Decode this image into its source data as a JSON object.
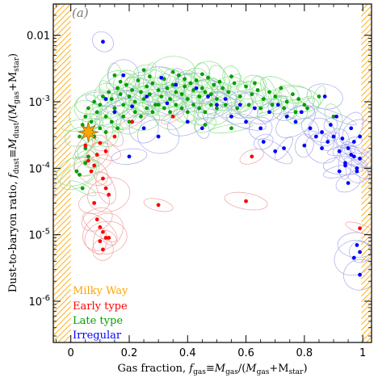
{
  "chart_data": {
    "type": "scatter",
    "panel_label": "(a)",
    "xlabel": "Gas fraction, f_gas≡M_gas/(M_gas+M_star)",
    "ylabel": "Dust-to-baryon ratio, f_dust≡M_dust/(M_gas+M_star)",
    "xlim": [
      -0.06,
      1.03
    ],
    "ylim_log10": [
      -6.62,
      -1.53
    ],
    "y_scale": "log",
    "x_ticks": [
      "0",
      "0.2",
      "0.4",
      "0.6",
      "0.8",
      "1"
    ],
    "y_ticks": [
      "10^-6",
      "10^-5",
      "10^-4",
      "10^-3",
      "0.01"
    ],
    "excluded_regions": [
      [
        -0.06,
        0.0
      ],
      [
        0.995,
        1.03
      ]
    ],
    "legend_position": "bottom-left",
    "legend": [
      {
        "label": "Milky Way",
        "color": "#ffa500"
      },
      {
        "label": "Early type",
        "color": "#ff0000"
      },
      {
        "label": "Late type",
        "color": "#00a000"
      },
      {
        "label": "Irregular",
        "color": "#0000ff"
      }
    ],
    "series": [
      {
        "name": "Milky Way",
        "color": "#ffa500",
        "marker": "star",
        "points": [
          [
            0.06,
            0.00035
          ]
        ]
      },
      {
        "name": "Early type",
        "color": "#ff0000",
        "points": [
          [
            0.05,
            0.00022
          ],
          [
            0.06,
            0.00013
          ],
          [
            0.07,
            9e-05
          ],
          [
            0.08,
            0.00011
          ],
          [
            0.09,
            0.00016
          ],
          [
            0.1,
            0.00024
          ],
          [
            0.11,
            7e-05
          ],
          [
            0.12,
            5e-05
          ],
          [
            0.13,
            4e-05
          ],
          [
            0.09,
            1.7e-05
          ],
          [
            0.1,
            1.3e-05
          ],
          [
            0.11,
            1.1e-05
          ],
          [
            0.12,
            9e-06
          ],
          [
            0.1,
            8e-06
          ],
          [
            0.13,
            9e-06
          ],
          [
            0.11,
            6e-06
          ],
          [
            0.08,
            3e-05
          ],
          [
            0.12,
            0.00018
          ],
          [
            0.15,
            0.0003
          ],
          [
            0.3,
            2.8e-05
          ],
          [
            0.6,
            3.2e-05
          ],
          [
            0.35,
            0.0006
          ],
          [
            0.21,
            0.0005
          ],
          [
            0.62,
            0.00015
          ],
          [
            0.99,
            1.25e-05
          ]
        ]
      },
      {
        "name": "Late type",
        "color": "#00a000",
        "points": [
          [
            0.03,
            0.0003
          ],
          [
            0.04,
            0.00045
          ],
          [
            0.05,
            0.0006
          ],
          [
            0.06,
            0.0008
          ],
          [
            0.07,
            0.0005
          ],
          [
            0.08,
            0.001
          ],
          [
            0.09,
            0.0007
          ],
          [
            0.1,
            0.0009
          ],
          [
            0.11,
            0.0012
          ],
          [
            0.12,
            0.0006
          ],
          [
            0.13,
            0.0014
          ],
          [
            0.14,
            0.0011
          ],
          [
            0.15,
            0.0008
          ],
          [
            0.16,
            0.0016
          ],
          [
            0.17,
            0.0013
          ],
          [
            0.18,
            0.0009
          ],
          [
            0.19,
            0.0018
          ],
          [
            0.2,
            0.0012
          ],
          [
            0.21,
            0.0015
          ],
          [
            0.22,
            0.001
          ],
          [
            0.23,
            0.0021
          ],
          [
            0.24,
            0.0014
          ],
          [
            0.25,
            0.0011
          ],
          [
            0.26,
            0.0017
          ],
          [
            0.27,
            0.0013
          ],
          [
            0.28,
            0.0019
          ],
          [
            0.29,
            0.0009
          ],
          [
            0.3,
            0.0015
          ],
          [
            0.31,
            0.0012
          ],
          [
            0.32,
            0.0022
          ],
          [
            0.33,
            0.0016
          ],
          [
            0.34,
            0.0011
          ],
          [
            0.35,
            0.0018
          ],
          [
            0.36,
            0.0014
          ],
          [
            0.37,
            0.0025
          ],
          [
            0.38,
            0.0013
          ],
          [
            0.39,
            0.0017
          ],
          [
            0.4,
            0.0011
          ],
          [
            0.41,
            0.0019
          ],
          [
            0.42,
            0.0015
          ],
          [
            0.43,
            0.0021
          ],
          [
            0.44,
            0.0012
          ],
          [
            0.45,
            0.0016
          ],
          [
            0.46,
            0.0014
          ],
          [
            0.47,
            0.0023
          ],
          [
            0.48,
            0.0013
          ],
          [
            0.49,
            0.0018
          ],
          [
            0.5,
            0.0011
          ],
          [
            0.52,
            0.0016
          ],
          [
            0.54,
            0.0014
          ],
          [
            0.56,
            0.0019
          ],
          [
            0.58,
            0.0012
          ],
          [
            0.6,
            0.0017
          ],
          [
            0.62,
            0.0013
          ],
          [
            0.64,
            0.0015
          ],
          [
            0.66,
            0.0011
          ],
          [
            0.68,
            0.0014
          ],
          [
            0.7,
            0.0012
          ],
          [
            0.72,
            0.0016
          ],
          [
            0.74,
            0.001
          ],
          [
            0.76,
            0.0013
          ],
          [
            0.78,
            0.0011
          ],
          [
            0.8,
            0.0009
          ],
          [
            0.05,
            0.0002
          ],
          [
            0.06,
            0.00015
          ],
          [
            0.08,
            0.0003
          ],
          [
            0.1,
            0.0004
          ],
          [
            0.12,
            0.00035
          ],
          [
            0.14,
            0.0005
          ],
          [
            0.16,
            0.0004
          ],
          [
            0.18,
            0.0006
          ],
          [
            0.2,
            0.0005
          ],
          [
            0.22,
            0.0007
          ],
          [
            0.24,
            0.0006
          ],
          [
            0.26,
            0.0008
          ],
          [
            0.28,
            0.0007
          ],
          [
            0.3,
            0.0009
          ],
          [
            0.32,
            0.0008
          ],
          [
            0.34,
            0.0007
          ],
          [
            0.36,
            0.0009
          ],
          [
            0.38,
            0.0008
          ],
          [
            0.4,
            0.0007
          ],
          [
            0.42,
            0.0009
          ],
          [
            0.44,
            0.0008
          ],
          [
            0.46,
            0.0007
          ],
          [
            0.48,
            0.0009
          ],
          [
            0.5,
            0.0008
          ],
          [
            0.53,
            0.0009
          ],
          [
            0.57,
            0.0008
          ],
          [
            0.61,
            0.0009
          ],
          [
            0.65,
            0.0008
          ],
          [
            0.69,
            0.0009
          ],
          [
            0.73,
            0.0008
          ],
          [
            0.77,
            0.0007
          ],
          [
            0.81,
            0.0008
          ],
          [
            0.03,
            8e-05
          ],
          [
            0.04,
            5e-05
          ],
          [
            0.05,
            0.00012
          ],
          [
            0.02,
            9e-05
          ],
          [
            0.15,
            0.0025
          ],
          [
            0.25,
            0.003
          ],
          [
            0.35,
            0.0028
          ],
          [
            0.45,
            0.0026
          ],
          [
            0.55,
            0.0024
          ],
          [
            0.17,
            0.002
          ],
          [
            0.27,
            0.0024
          ],
          [
            0.39,
            0.0022
          ],
          [
            0.51,
            0.002
          ],
          [
            0.63,
            0.0019
          ],
          [
            0.85,
            0.0012
          ],
          [
            0.9,
            0.0006
          ],
          [
            0.55,
            0.0004
          ],
          [
            0.46,
            0.00045
          ]
        ]
      },
      {
        "name": "Irregular",
        "color": "#0000ff",
        "points": [
          [
            0.11,
            0.008
          ],
          [
            0.18,
            0.0025
          ],
          [
            0.31,
            0.0023
          ],
          [
            0.36,
            0.0018
          ],
          [
            0.43,
            0.0016
          ],
          [
            0.47,
            0.0012
          ],
          [
            0.53,
            0.0011
          ],
          [
            0.58,
            0.0009
          ],
          [
            0.63,
            0.0008
          ],
          [
            0.68,
            0.0007
          ],
          [
            0.71,
            0.0009
          ],
          [
            0.74,
            0.0006
          ],
          [
            0.77,
            0.0005
          ],
          [
            0.79,
            0.0007
          ],
          [
            0.82,
            0.0004
          ],
          [
            0.84,
            0.0003
          ],
          [
            0.86,
            0.00035
          ],
          [
            0.88,
            0.00025
          ],
          [
            0.9,
            0.0003
          ],
          [
            0.92,
            0.00018
          ],
          [
            0.94,
            0.00012
          ],
          [
            0.95,
            0.0002
          ],
          [
            0.96,
            0.0004
          ],
          [
            0.97,
            0.00015
          ],
          [
            0.98,
            0.0001
          ],
          [
            0.99,
            0.0003
          ],
          [
            0.92,
            9e-05
          ],
          [
            0.94,
            0.00011
          ],
          [
            0.98,
            9e-05
          ],
          [
            0.99,
            0.00014
          ],
          [
            0.96,
            0.00016
          ],
          [
            0.97,
            0.00025
          ],
          [
            0.95,
            6e-05
          ],
          [
            0.98,
            7e-06
          ],
          [
            0.99,
            5.5e-06
          ],
          [
            0.97,
            4.5e-06
          ],
          [
            0.99,
            2.5e-06
          ],
          [
            0.66,
            0.00025
          ],
          [
            0.73,
            0.0002
          ],
          [
            0.86,
            0.0002
          ],
          [
            0.93,
            0.00028
          ],
          [
            0.4,
            0.0005
          ],
          [
            0.45,
            0.0004
          ],
          [
            0.3,
            0.0003
          ],
          [
            0.2,
            0.00015
          ],
          [
            0.25,
            0.0004
          ],
          [
            0.5,
            0.0009
          ],
          [
            0.55,
            0.0006
          ],
          [
            0.6,
            0.0005
          ],
          [
            0.65,
            0.0004
          ],
          [
            0.7,
            0.00018
          ],
          [
            0.8,
            0.00022
          ],
          [
            0.89,
            0.00045
          ],
          [
            0.91,
            0.0006
          ],
          [
            0.87,
            0.0012
          ],
          [
            0.12,
            0.0011
          ],
          [
            0.15,
            0.0007
          ],
          [
            0.21,
            0.00085
          ],
          [
            0.26,
            0.0012
          ],
          [
            0.33,
            0.00095
          ]
        ]
      }
    ]
  }
}
